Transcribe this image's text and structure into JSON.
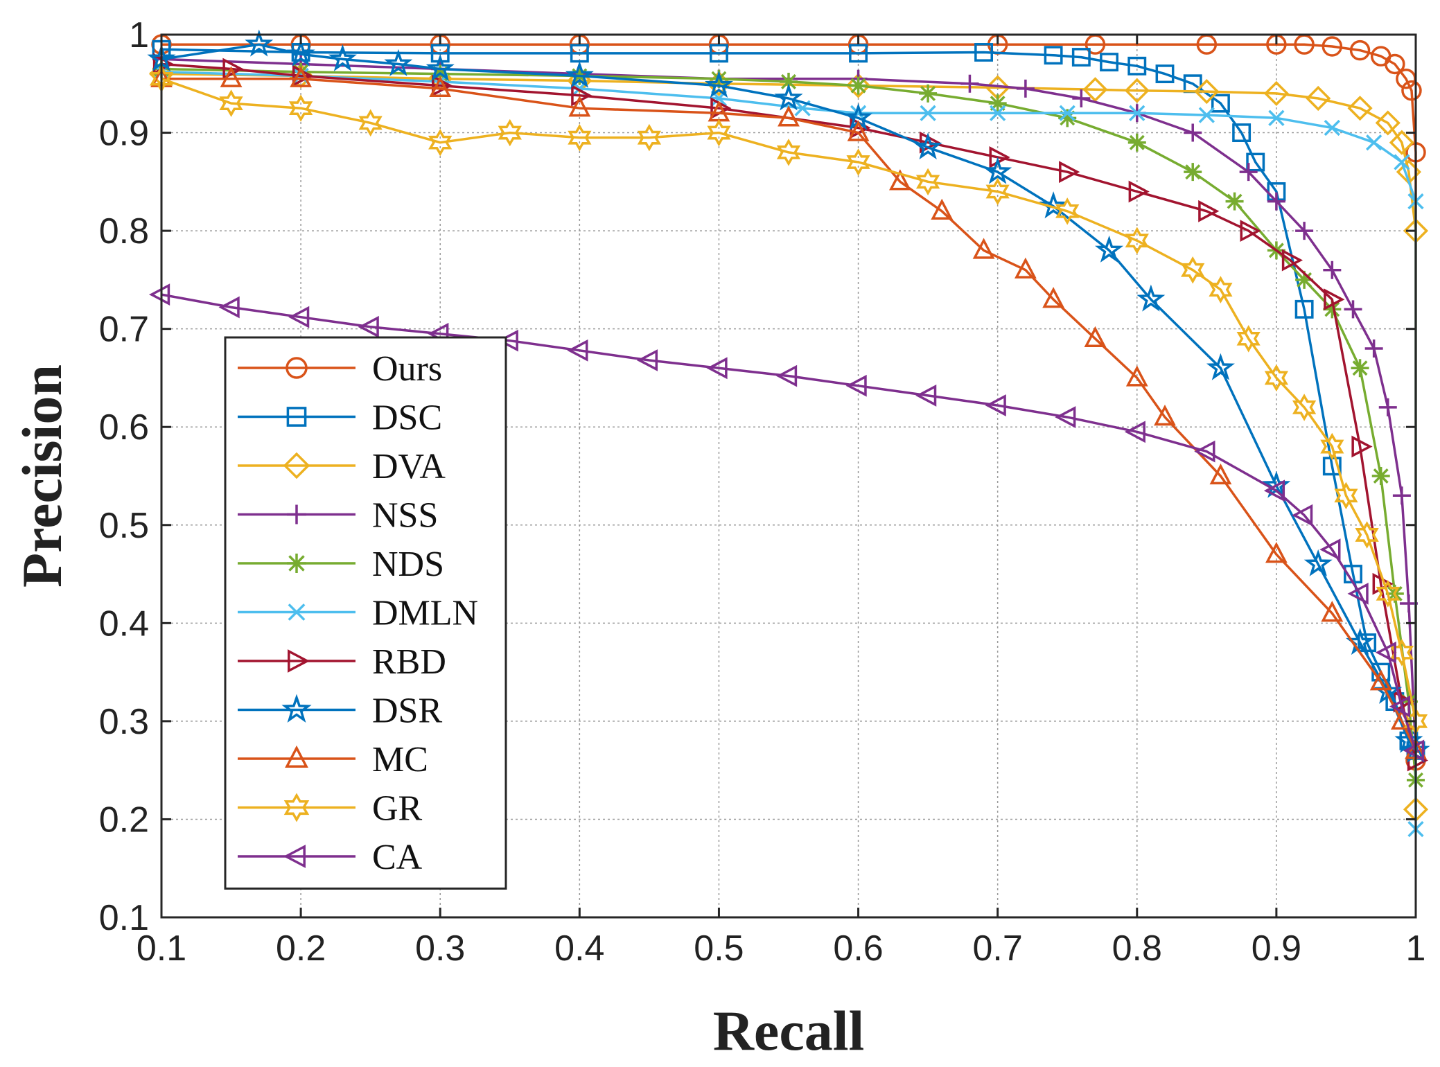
{
  "chart_data": {
    "type": "line",
    "title": "",
    "xlabel": "Recall",
    "ylabel": "Precision",
    "xlim": [
      0.1,
      1.0
    ],
    "ylim": [
      0.1,
      1.0
    ],
    "grid": true,
    "legend_position": "lower-left",
    "xticks": [
      "0.1",
      "0.2",
      "0.3",
      "0.4",
      "0.5",
      "0.6",
      "0.7",
      "0.8",
      "0.9",
      "1"
    ],
    "yticks": [
      "0.1",
      "0.2",
      "0.3",
      "0.4",
      "0.5",
      "0.6",
      "0.7",
      "0.8",
      "0.9",
      "1"
    ],
    "series": [
      {
        "name": "Ours",
        "color": "#D95319",
        "marker": "circle",
        "points": [
          [
            0.1,
            0.99
          ],
          [
            0.2,
            0.99
          ],
          [
            0.3,
            0.99
          ],
          [
            0.4,
            0.99
          ],
          [
            0.5,
            0.99
          ],
          [
            0.6,
            0.99
          ],
          [
            0.7,
            0.99
          ],
          [
            0.77,
            0.99
          ],
          [
            0.85,
            0.99
          ],
          [
            0.9,
            0.99
          ],
          [
            0.92,
            0.99
          ],
          [
            0.94,
            0.988
          ],
          [
            0.96,
            0.984
          ],
          [
            0.975,
            0.978
          ],
          [
            0.985,
            0.97
          ],
          [
            0.993,
            0.955
          ],
          [
            0.997,
            0.943
          ],
          [
            1.0,
            0.88
          ],
          [
            1.0,
            0.26
          ]
        ]
      },
      {
        "name": "DSC",
        "color": "#0072BD",
        "marker": "square",
        "points": [
          [
            0.1,
            0.985
          ],
          [
            0.2,
            0.982
          ],
          [
            0.3,
            0.981
          ],
          [
            0.4,
            0.981
          ],
          [
            0.5,
            0.981
          ],
          [
            0.6,
            0.981
          ],
          [
            0.69,
            0.982
          ],
          [
            0.74,
            0.979
          ],
          [
            0.76,
            0.977
          ],
          [
            0.78,
            0.972
          ],
          [
            0.8,
            0.968
          ],
          [
            0.82,
            0.96
          ],
          [
            0.84,
            0.95
          ],
          [
            0.86,
            0.93
          ],
          [
            0.875,
            0.9
          ],
          [
            0.885,
            0.87
          ],
          [
            0.9,
            0.84
          ],
          [
            0.92,
            0.72
          ],
          [
            0.94,
            0.56
          ],
          [
            0.955,
            0.45
          ],
          [
            0.965,
            0.38
          ],
          [
            0.975,
            0.35
          ],
          [
            0.985,
            0.32
          ],
          [
            0.995,
            0.28
          ],
          [
            1.0,
            0.27
          ]
        ]
      },
      {
        "name": "DVA",
        "color": "#EDB120",
        "marker": "diamond",
        "points": [
          [
            0.1,
            0.96
          ],
          [
            0.2,
            0.958
          ],
          [
            0.3,
            0.955
          ],
          [
            0.4,
            0.953
          ],
          [
            0.5,
            0.95
          ],
          [
            0.6,
            0.948
          ],
          [
            0.7,
            0.946
          ],
          [
            0.77,
            0.944
          ],
          [
            0.8,
            0.943
          ],
          [
            0.85,
            0.942
          ],
          [
            0.9,
            0.94
          ],
          [
            0.93,
            0.935
          ],
          [
            0.96,
            0.925
          ],
          [
            0.98,
            0.91
          ],
          [
            0.99,
            0.89
          ],
          [
            0.995,
            0.86
          ],
          [
            1.0,
            0.8
          ],
          [
            1.0,
            0.21
          ]
        ]
      },
      {
        "name": "NSS",
        "color": "#7E2F8E",
        "marker": "plus",
        "points": [
          [
            0.1,
            0.975
          ],
          [
            0.2,
            0.97
          ],
          [
            0.3,
            0.965
          ],
          [
            0.4,
            0.96
          ],
          [
            0.5,
            0.955
          ],
          [
            0.6,
            0.955
          ],
          [
            0.68,
            0.95
          ],
          [
            0.72,
            0.945
          ],
          [
            0.76,
            0.935
          ],
          [
            0.8,
            0.92
          ],
          [
            0.84,
            0.9
          ],
          [
            0.88,
            0.86
          ],
          [
            0.9,
            0.83
          ],
          [
            0.92,
            0.8
          ],
          [
            0.94,
            0.76
          ],
          [
            0.955,
            0.72
          ],
          [
            0.97,
            0.68
          ],
          [
            0.98,
            0.62
          ],
          [
            0.99,
            0.53
          ],
          [
            0.995,
            0.42
          ],
          [
            1.0,
            0.27
          ]
        ]
      },
      {
        "name": "NDS",
        "color": "#77AC30",
        "marker": "asterisk",
        "points": [
          [
            0.1,
            0.965
          ],
          [
            0.2,
            0.962
          ],
          [
            0.3,
            0.96
          ],
          [
            0.4,
            0.958
          ],
          [
            0.5,
            0.955
          ],
          [
            0.55,
            0.952
          ],
          [
            0.6,
            0.948
          ],
          [
            0.65,
            0.94
          ],
          [
            0.7,
            0.93
          ],
          [
            0.75,
            0.915
          ],
          [
            0.8,
            0.89
          ],
          [
            0.84,
            0.86
          ],
          [
            0.87,
            0.83
          ],
          [
            0.9,
            0.78
          ],
          [
            0.92,
            0.75
          ],
          [
            0.94,
            0.72
          ],
          [
            0.96,
            0.66
          ],
          [
            0.975,
            0.55
          ],
          [
            0.985,
            0.43
          ],
          [
            0.995,
            0.32
          ],
          [
            1.0,
            0.24
          ]
        ]
      },
      {
        "name": "DMLN",
        "color": "#4DBEEE",
        "marker": "x",
        "points": [
          [
            0.1,
            0.962
          ],
          [
            0.2,
            0.958
          ],
          [
            0.3,
            0.952
          ],
          [
            0.4,
            0.945
          ],
          [
            0.5,
            0.935
          ],
          [
            0.56,
            0.925
          ],
          [
            0.6,
            0.92
          ],
          [
            0.65,
            0.92
          ],
          [
            0.7,
            0.92
          ],
          [
            0.75,
            0.92
          ],
          [
            0.8,
            0.92
          ],
          [
            0.85,
            0.918
          ],
          [
            0.9,
            0.915
          ],
          [
            0.94,
            0.905
          ],
          [
            0.97,
            0.89
          ],
          [
            0.99,
            0.87
          ],
          [
            1.0,
            0.83
          ],
          [
            1.0,
            0.19
          ]
        ]
      },
      {
        "name": "RBD",
        "color": "#A2142F",
        "marker": "triangle-right",
        "points": [
          [
            0.1,
            0.97
          ],
          [
            0.15,
            0.965
          ],
          [
            0.2,
            0.958
          ],
          [
            0.3,
            0.948
          ],
          [
            0.4,
            0.938
          ],
          [
            0.5,
            0.925
          ],
          [
            0.6,
            0.905
          ],
          [
            0.65,
            0.89
          ],
          [
            0.7,
            0.875
          ],
          [
            0.75,
            0.86
          ],
          [
            0.8,
            0.84
          ],
          [
            0.85,
            0.82
          ],
          [
            0.88,
            0.8
          ],
          [
            0.91,
            0.77
          ],
          [
            0.94,
            0.73
          ],
          [
            0.96,
            0.58
          ],
          [
            0.975,
            0.44
          ],
          [
            0.99,
            0.32
          ],
          [
            1.0,
            0.26
          ]
        ]
      },
      {
        "name": "DSR",
        "color": "#0072BD",
        "marker": "star",
        "points": [
          [
            0.1,
            0.975
          ],
          [
            0.17,
            0.99
          ],
          [
            0.2,
            0.98
          ],
          [
            0.23,
            0.975
          ],
          [
            0.27,
            0.97
          ],
          [
            0.3,
            0.965
          ],
          [
            0.4,
            0.958
          ],
          [
            0.5,
            0.948
          ],
          [
            0.55,
            0.935
          ],
          [
            0.6,
            0.915
          ],
          [
            0.65,
            0.885
          ],
          [
            0.7,
            0.86
          ],
          [
            0.74,
            0.825
          ],
          [
            0.78,
            0.78
          ],
          [
            0.81,
            0.73
          ],
          [
            0.86,
            0.66
          ],
          [
            0.9,
            0.54
          ],
          [
            0.93,
            0.46
          ],
          [
            0.96,
            0.38
          ],
          [
            0.98,
            0.33
          ],
          [
            0.995,
            0.28
          ],
          [
            1.0,
            0.27
          ]
        ]
      },
      {
        "name": "MC",
        "color": "#D95319",
        "marker": "triangle-up",
        "points": [
          [
            0.1,
            0.955
          ],
          [
            0.15,
            0.955
          ],
          [
            0.2,
            0.955
          ],
          [
            0.3,
            0.945
          ],
          [
            0.4,
            0.925
          ],
          [
            0.5,
            0.92
          ],
          [
            0.55,
            0.915
          ],
          [
            0.6,
            0.9
          ],
          [
            0.63,
            0.85
          ],
          [
            0.66,
            0.82
          ],
          [
            0.69,
            0.78
          ],
          [
            0.72,
            0.76
          ],
          [
            0.74,
            0.73
          ],
          [
            0.77,
            0.69
          ],
          [
            0.8,
            0.65
          ],
          [
            0.82,
            0.61
          ],
          [
            0.86,
            0.55
          ],
          [
            0.9,
            0.47
          ],
          [
            0.94,
            0.41
          ],
          [
            0.975,
            0.34
          ],
          [
            0.99,
            0.3
          ],
          [
            1.0,
            0.27
          ]
        ]
      },
      {
        "name": "GR",
        "color": "#EDB120",
        "marker": "hexagram",
        "points": [
          [
            0.1,
            0.955
          ],
          [
            0.15,
            0.93
          ],
          [
            0.2,
            0.925
          ],
          [
            0.25,
            0.91
          ],
          [
            0.3,
            0.89
          ],
          [
            0.35,
            0.9
          ],
          [
            0.4,
            0.895
          ],
          [
            0.45,
            0.895
          ],
          [
            0.5,
            0.9
          ],
          [
            0.55,
            0.88
          ],
          [
            0.6,
            0.87
          ],
          [
            0.65,
            0.85
          ],
          [
            0.7,
            0.84
          ],
          [
            0.75,
            0.82
          ],
          [
            0.8,
            0.79
          ],
          [
            0.84,
            0.76
          ],
          [
            0.86,
            0.74
          ],
          [
            0.88,
            0.69
          ],
          [
            0.9,
            0.65
          ],
          [
            0.92,
            0.62
          ],
          [
            0.94,
            0.58
          ],
          [
            0.95,
            0.53
          ],
          [
            0.965,
            0.49
          ],
          [
            0.98,
            0.43
          ],
          [
            0.99,
            0.37
          ],
          [
            1.0,
            0.3
          ]
        ]
      },
      {
        "name": "CA",
        "color": "#7E2F8E",
        "marker": "triangle-left",
        "points": [
          [
            0.1,
            0.735
          ],
          [
            0.15,
            0.722
          ],
          [
            0.2,
            0.712
          ],
          [
            0.25,
            0.702
          ],
          [
            0.3,
            0.695
          ],
          [
            0.35,
            0.688
          ],
          [
            0.4,
            0.678
          ],
          [
            0.45,
            0.668
          ],
          [
            0.5,
            0.66
          ],
          [
            0.55,
            0.652
          ],
          [
            0.6,
            0.642
          ],
          [
            0.65,
            0.632
          ],
          [
            0.7,
            0.622
          ],
          [
            0.75,
            0.61
          ],
          [
            0.8,
            0.595
          ],
          [
            0.85,
            0.575
          ],
          [
            0.9,
            0.535
          ],
          [
            0.92,
            0.51
          ],
          [
            0.94,
            0.475
          ],
          [
            0.96,
            0.43
          ],
          [
            0.98,
            0.37
          ],
          [
            0.99,
            0.315
          ],
          [
            1.0,
            0.27
          ]
        ]
      }
    ]
  }
}
